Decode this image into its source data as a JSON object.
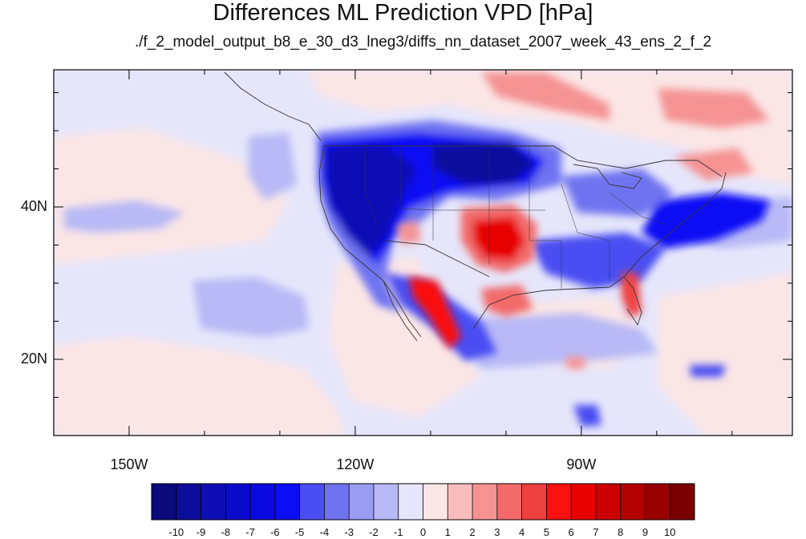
{
  "title": "Differences ML Prediction VPD [hPa]",
  "subtitle": "./f_2_model_output_b8_e_30_d3_lneg3/diffs_nn_dataset_2007_week_43_ens_2_f_2",
  "map": {
    "projection": "cylindrical-equidistant",
    "lon_range": [
      -160,
      -62
    ],
    "lat_range": [
      10,
      58
    ],
    "lat_ticks": [
      {
        "value": 40,
        "label": "40N"
      },
      {
        "value": 20,
        "label": "20N"
      }
    ],
    "lon_ticks": [
      {
        "value": -150,
        "label": "150W"
      },
      {
        "value": -120,
        "label": "120W"
      },
      {
        "value": -90,
        "label": "90W"
      }
    ],
    "background_color": "#e6e6fb"
  },
  "colorbar": {
    "labels": [
      "-10",
      "-9",
      "-8",
      "-7",
      "-6",
      "-5",
      "-4",
      "-3",
      "-2",
      "-1",
      "0",
      "1",
      "2",
      "3",
      "4",
      "5",
      "6",
      "7",
      "8",
      "9",
      "10"
    ],
    "colors": [
      "#0a0a7a",
      "#0d0d9c",
      "#0e0eb6",
      "#0b0bcc",
      "#0a0ae0",
      "#0c0cf5",
      "#4a4ef2",
      "#7073f0",
      "#9a9cf1",
      "#b8b9f6",
      "#e6e6fb",
      "#fbe6e6",
      "#f9bcbc",
      "#f59393",
      "#f36a6a",
      "#ef4040",
      "#f91010",
      "#e60000",
      "#cc0000",
      "#b30000",
      "#990000",
      "#7a0000"
    ]
  }
}
